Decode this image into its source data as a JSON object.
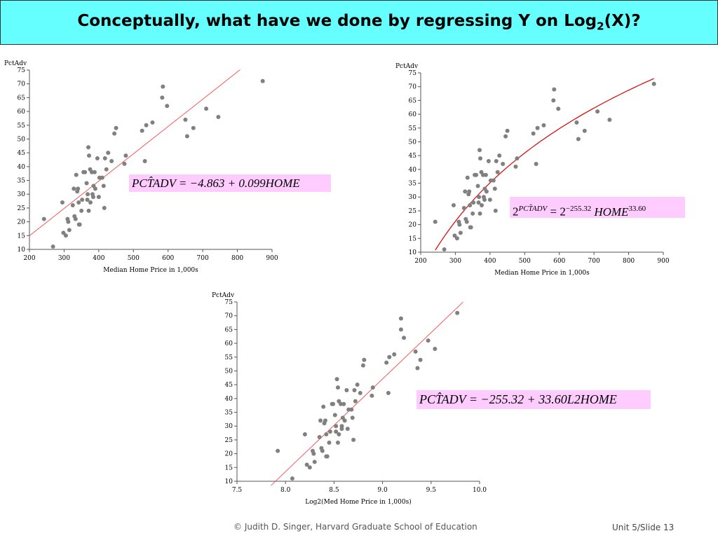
{
  "slide": {
    "title_main": "Conceptually, what have we done by regressing Y on Log",
    "title_sub": "2",
    "title_end": "(X)?",
    "footer_credit": "© Judith D. Singer, Harvard Graduate School of Education",
    "footer_slide": "Unit 5/Slide 13"
  },
  "equations": {
    "eq1": "PCT̂ADV = −4.863 + 0.099HOME",
    "eq2_base": "2",
    "eq2_sup": "PCT̂ADV",
    "eq2_mid": " = 2",
    "eq2_sup2": "−255.32",
    "eq2_var": "HOME",
    "eq2_sup3": "33.60",
    "eq3": "PCT̂ADV = −255.32 + 33.60L2HOME"
  },
  "colors": {
    "points": "#808080",
    "fit_line": "#ff3030",
    "fit_curve": "#dd0000",
    "title_bg": "#66ffff",
    "equation_bg": "#ffccff"
  },
  "chart_data": [
    {
      "type": "scatter",
      "ylabel": "PctAdv",
      "xlabel": "Median Home Price in 1,000s",
      "xlim": [
        200,
        900
      ],
      "ylim": [
        10,
        75
      ],
      "xticks": [
        200,
        300,
        400,
        500,
        600,
        700,
        800,
        900
      ],
      "yticks": [
        10,
        15,
        20,
        25,
        30,
        35,
        40,
        45,
        50,
        55,
        60,
        65,
        70,
        75
      ],
      "points": [
        [
          242,
          21
        ],
        [
          268,
          11
        ],
        [
          295,
          27
        ],
        [
          298,
          16
        ],
        [
          305,
          15
        ],
        [
          310,
          21
        ],
        [
          312,
          20
        ],
        [
          315,
          17
        ],
        [
          325,
          26
        ],
        [
          328,
          32
        ],
        [
          330,
          22
        ],
        [
          333,
          21
        ],
        [
          335,
          37
        ],
        [
          338,
          31
        ],
        [
          340,
          32
        ],
        [
          342,
          27
        ],
        [
          343,
          19
        ],
        [
          345,
          19
        ],
        [
          350,
          24
        ],
        [
          352,
          28
        ],
        [
          356,
          38
        ],
        [
          360,
          38
        ],
        [
          365,
          34
        ],
        [
          367,
          28
        ],
        [
          368,
          30
        ],
        [
          370,
          47
        ],
        [
          371,
          24
        ],
        [
          372,
          44
        ],
        [
          375,
          39
        ],
        [
          376,
          27
        ],
        [
          380,
          38
        ],
        [
          382,
          30
        ],
        [
          384,
          29
        ],
        [
          385,
          33
        ],
        [
          388,
          38
        ],
        [
          390,
          32
        ],
        [
          396,
          43
        ],
        [
          400,
          29
        ],
        [
          402,
          36
        ],
        [
          410,
          36
        ],
        [
          414,
          33
        ],
        [
          416,
          25
        ],
        [
          418,
          43
        ],
        [
          422,
          39
        ],
        [
          427,
          45
        ],
        [
          437,
          42
        ],
        [
          445,
          52
        ],
        [
          450,
          54
        ],
        [
          474,
          41
        ],
        [
          478,
          44
        ],
        [
          525,
          53
        ],
        [
          533,
          42
        ],
        [
          537,
          55
        ],
        [
          555,
          56
        ],
        [
          583,
          65
        ],
        [
          585,
          69
        ],
        [
          597,
          62
        ],
        [
          650,
          57
        ],
        [
          655,
          51
        ],
        [
          673,
          54
        ],
        [
          710,
          61
        ],
        [
          745,
          58
        ],
        [
          873,
          71
        ]
      ],
      "fit": {
        "kind": "linear",
        "intercept": -4.863,
        "slope": 0.099,
        "x_range": [
          200,
          808
        ]
      }
    },
    {
      "type": "scatter",
      "ylabel": "PctAdv",
      "xlabel": "Median Home Price in 1,000s",
      "xlim": [
        200,
        900
      ],
      "ylim": [
        10,
        75
      ],
      "xticks": [
        200,
        300,
        400,
        500,
        600,
        700,
        800,
        900
      ],
      "yticks": [
        10,
        15,
        20,
        25,
        30,
        35,
        40,
        45,
        50,
        55,
        60,
        65,
        70,
        75
      ],
      "points": [
        [
          242,
          21
        ],
        [
          268,
          11
        ],
        [
          295,
          27
        ],
        [
          298,
          16
        ],
        [
          305,
          15
        ],
        [
          310,
          21
        ],
        [
          312,
          20
        ],
        [
          315,
          17
        ],
        [
          325,
          26
        ],
        [
          328,
          32
        ],
        [
          330,
          22
        ],
        [
          333,
          21
        ],
        [
          335,
          37
        ],
        [
          338,
          31
        ],
        [
          340,
          32
        ],
        [
          342,
          27
        ],
        [
          343,
          19
        ],
        [
          345,
          19
        ],
        [
          350,
          24
        ],
        [
          352,
          28
        ],
        [
          356,
          38
        ],
        [
          360,
          38
        ],
        [
          365,
          34
        ],
        [
          367,
          28
        ],
        [
          368,
          30
        ],
        [
          370,
          47
        ],
        [
          371,
          24
        ],
        [
          372,
          44
        ],
        [
          375,
          39
        ],
        [
          376,
          27
        ],
        [
          380,
          38
        ],
        [
          382,
          30
        ],
        [
          384,
          29
        ],
        [
          385,
          33
        ],
        [
          388,
          38
        ],
        [
          390,
          32
        ],
        [
          396,
          43
        ],
        [
          400,
          29
        ],
        [
          402,
          36
        ],
        [
          410,
          36
        ],
        [
          414,
          33
        ],
        [
          416,
          25
        ],
        [
          418,
          43
        ],
        [
          422,
          39
        ],
        [
          427,
          45
        ],
        [
          437,
          42
        ],
        [
          445,
          52
        ],
        [
          450,
          54
        ],
        [
          474,
          41
        ],
        [
          478,
          44
        ],
        [
          525,
          53
        ],
        [
          533,
          42
        ],
        [
          537,
          55
        ],
        [
          555,
          56
        ],
        [
          583,
          65
        ],
        [
          585,
          69
        ],
        [
          597,
          62
        ],
        [
          650,
          57
        ],
        [
          655,
          51
        ],
        [
          673,
          54
        ],
        [
          710,
          61
        ],
        [
          745,
          58
        ],
        [
          873,
          71
        ]
      ],
      "fit": {
        "kind": "log2",
        "intercept": -255.32,
        "slope": 33.6,
        "x_range": [
          242,
          873
        ]
      }
    },
    {
      "type": "scatter",
      "ylabel": "PctAdv",
      "xlabel": "Log2(Med Home Price in 1,000s)",
      "xlim": [
        7.5,
        10.0
      ],
      "ylim": [
        10,
        75
      ],
      "xticks": [
        7.5,
        8.0,
        8.5,
        9.0,
        9.5,
        10.0
      ],
      "yticks": [
        10,
        15,
        20,
        25,
        30,
        35,
        40,
        45,
        50,
        55,
        60,
        65,
        70,
        75
      ],
      "points": [
        [
          7.92,
          21
        ],
        [
          8.07,
          11
        ],
        [
          8.2,
          27
        ],
        [
          8.22,
          16
        ],
        [
          8.25,
          15
        ],
        [
          8.28,
          21
        ],
        [
          8.29,
          20
        ],
        [
          8.3,
          17
        ],
        [
          8.35,
          26
        ],
        [
          8.36,
          32
        ],
        [
          8.37,
          22
        ],
        [
          8.38,
          21
        ],
        [
          8.39,
          37
        ],
        [
          8.4,
          31
        ],
        [
          8.41,
          32
        ],
        [
          8.42,
          27
        ],
        [
          8.42,
          19
        ],
        [
          8.43,
          19
        ],
        [
          8.45,
          24
        ],
        [
          8.46,
          28
        ],
        [
          8.48,
          38
        ],
        [
          8.49,
          38
        ],
        [
          8.51,
          34
        ],
        [
          8.52,
          28
        ],
        [
          8.52,
          30
        ],
        [
          8.53,
          47
        ],
        [
          8.54,
          24
        ],
        [
          8.54,
          44
        ],
        [
          8.55,
          39
        ],
        [
          8.55,
          27
        ],
        [
          8.57,
          38
        ],
        [
          8.58,
          30
        ],
        [
          8.58,
          29
        ],
        [
          8.59,
          33
        ],
        [
          8.6,
          38
        ],
        [
          8.61,
          32
        ],
        [
          8.63,
          43
        ],
        [
          8.64,
          29
        ],
        [
          8.65,
          36
        ],
        [
          8.68,
          36
        ],
        [
          8.69,
          33
        ],
        [
          8.7,
          25
        ],
        [
          8.71,
          43
        ],
        [
          8.72,
          39
        ],
        [
          8.74,
          45
        ],
        [
          8.77,
          42
        ],
        [
          8.8,
          52
        ],
        [
          8.81,
          54
        ],
        [
          8.89,
          41
        ],
        [
          8.9,
          44
        ],
        [
          9.04,
          53
        ],
        [
          9.06,
          42
        ],
        [
          9.07,
          55
        ],
        [
          9.12,
          56
        ],
        [
          9.19,
          65
        ],
        [
          9.19,
          69
        ],
        [
          9.22,
          62
        ],
        [
          9.34,
          57
        ],
        [
          9.36,
          51
        ],
        [
          9.39,
          54
        ],
        [
          9.47,
          61
        ],
        [
          9.54,
          58
        ],
        [
          9.77,
          71
        ]
      ],
      "fit": {
        "kind": "linear",
        "intercept": -255.32,
        "slope": 33.6,
        "x_range": [
          7.85,
          9.83
        ]
      }
    }
  ]
}
